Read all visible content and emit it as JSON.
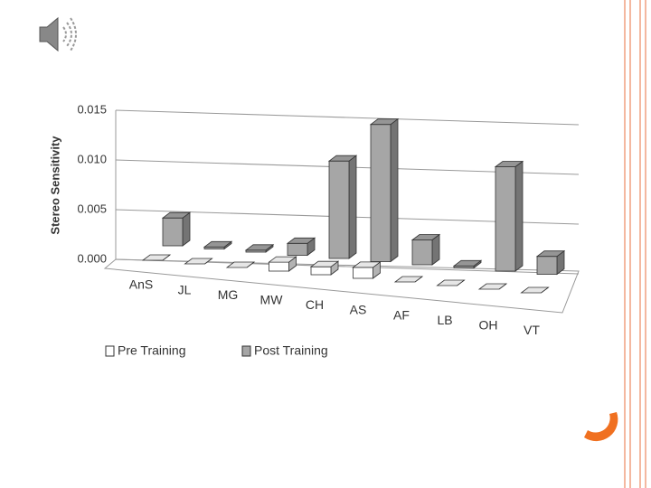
{
  "chart_data": {
    "type": "bar3d",
    "y_label": "Stereo Sensitivity",
    "categories": [
      "AnS",
      "JL",
      "MG",
      "MW",
      "CH",
      "AS",
      "AF",
      "LB",
      "OH",
      "VT"
    ],
    "series": [
      {
        "name": "Pre Training",
        "color": "#ffffff",
        "values": [
          0,
          0,
          0,
          0.0009,
          0.0008,
          0.0011,
          0,
          0,
          0,
          0
        ]
      },
      {
        "name": "Post Training",
        "color": "#a6a6a6",
        "values": [
          0.0028,
          0.0002,
          0.0002,
          0.0012,
          0.0098,
          0.0138,
          0.0025,
          0.0002,
          0.0105,
          0.0018
        ]
      }
    ],
    "ylim": [
      0,
      0.015
    ],
    "yticks": [
      {
        "value": 0,
        "label": "0.000"
      },
      {
        "value": 0.005,
        "label": "0.005"
      },
      {
        "value": 0.01,
        "label": "0.010"
      },
      {
        "value": 0.015,
        "label": "0.015"
      }
    ],
    "grid": true
  }
}
